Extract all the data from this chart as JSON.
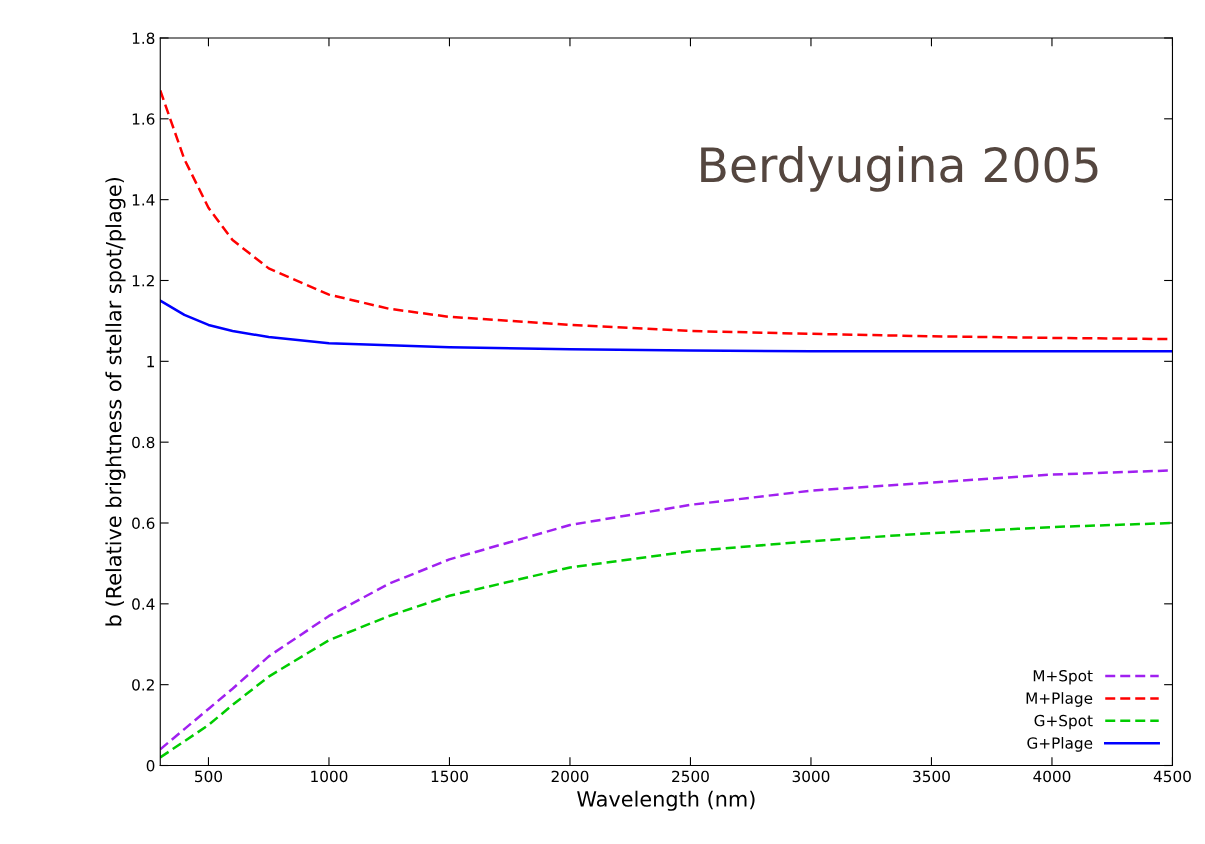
{
  "chart_data": {
    "type": "line",
    "xlabel": "Wavelength (nm)",
    "ylabel": "b (Relative brightness of stellar spot/plage)",
    "annotations": [
      "Berdyugina 2005"
    ],
    "x": [
      300,
      400,
      500,
      600,
      750,
      1000,
      1250,
      1500,
      2000,
      2500,
      3000,
      3500,
      4000,
      4500
    ],
    "series": [
      {
        "name": "M+Spot",
        "color": "#a020f0",
        "line_style": "dashed",
        "values": [
          0.04,
          0.09,
          0.14,
          0.19,
          0.27,
          0.37,
          0.45,
          0.51,
          0.595,
          0.645,
          0.68,
          0.7,
          0.72,
          0.73
        ]
      },
      {
        "name": "M+Plage",
        "color": "#ff0000",
        "line_style": "dashed",
        "values": [
          1.67,
          1.5,
          1.38,
          1.3,
          1.23,
          1.165,
          1.13,
          1.11,
          1.09,
          1.075,
          1.068,
          1.062,
          1.058,
          1.055
        ]
      },
      {
        "name": "G+Spot",
        "color": "#00cc00",
        "line_style": "dashed",
        "values": [
          0.02,
          0.06,
          0.1,
          0.15,
          0.22,
          0.31,
          0.37,
          0.42,
          0.49,
          0.53,
          0.555,
          0.575,
          0.59,
          0.6
        ]
      },
      {
        "name": "G+Plage",
        "color": "#0000ff",
        "line_style": "solid",
        "values": [
          1.15,
          1.115,
          1.09,
          1.075,
          1.06,
          1.045,
          1.04,
          1.035,
          1.03,
          1.027,
          1.025,
          1.025,
          1.025,
          1.025
        ]
      }
    ],
    "xlim": [
      300,
      4500
    ],
    "xticks": [
      500,
      1000,
      1500,
      2000,
      2500,
      3000,
      3500,
      4000,
      4500
    ],
    "ylim": [
      0,
      1.8
    ],
    "yticks": [
      0,
      0.2,
      0.4,
      0.6,
      0.8,
      1,
      1.2,
      1.4,
      1.6,
      1.8
    ],
    "grid": false,
    "legend": "bottom right",
    "marker": "none"
  }
}
